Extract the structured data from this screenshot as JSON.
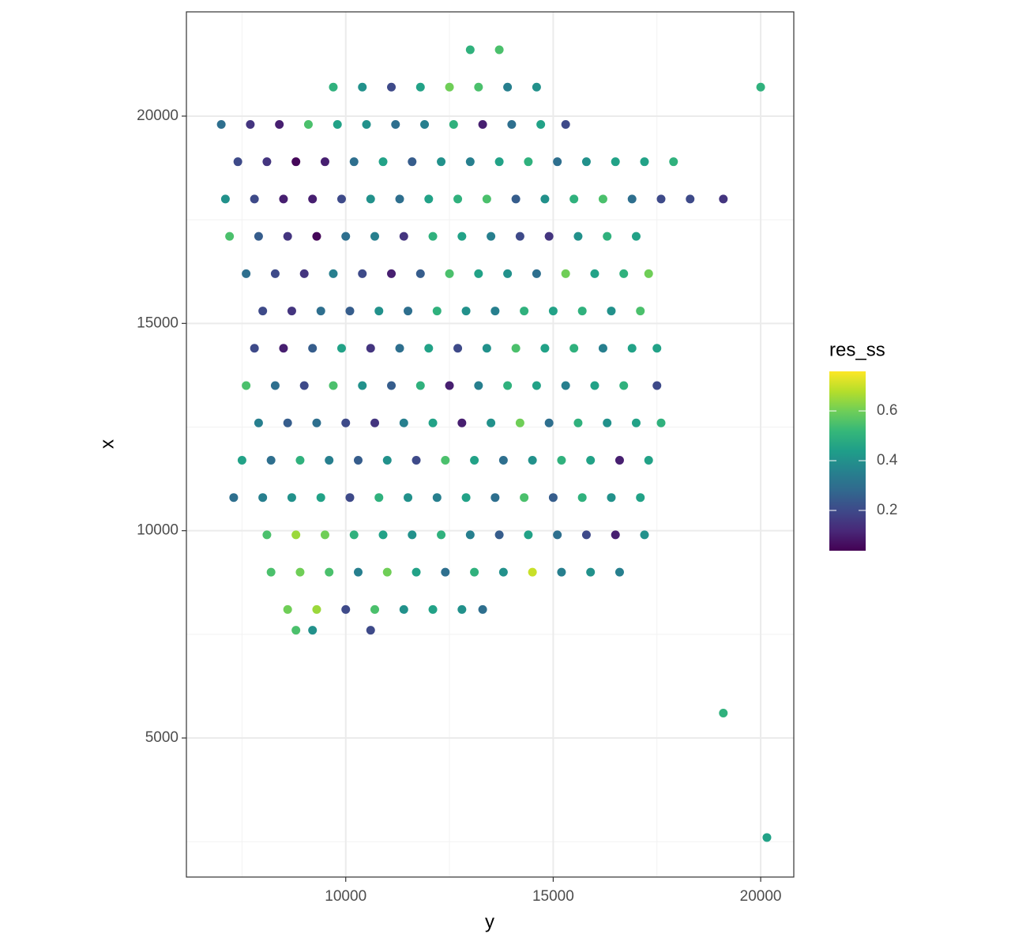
{
  "chart_data": {
    "type": "scatter",
    "x_label": "y",
    "y_label": "x",
    "legend_title": "res_ss",
    "xlim": [
      6160,
      20798
    ],
    "ylim": [
      1646,
      22515
    ],
    "xticks": [
      10000,
      15000,
      20000
    ],
    "yticks": [
      5000,
      10000,
      15000,
      20000
    ],
    "xminor": [
      7500,
      12500,
      17500
    ],
    "yminor": [
      2500,
      7500,
      12500,
      17500
    ],
    "grid": true,
    "colorlim": [
      0.038,
      0.759
    ],
    "colorticks": [
      0.2,
      0.4,
      0.6
    ],
    "colormap": "viridis",
    "x": [
      13000,
      13700,
      9700,
      10400,
      11100,
      11800,
      12500,
      13200,
      13900,
      14600,
      7000,
      7700,
      8400,
      9100,
      9800,
      10500,
      11200,
      11900,
      12600,
      13300,
      14000,
      14700,
      15300,
      7400,
      8100,
      8800,
      9500,
      10200,
      10900,
      11600,
      12300,
      13000,
      13700,
      14400,
      15100,
      15800,
      16500,
      17200,
      17900,
      7100,
      7800,
      8500,
      9200,
      9900,
      10600,
      11300,
      12000,
      12700,
      13400,
      14100,
      14800,
      15500,
      16200,
      16900,
      17600,
      18300,
      19100,
      7200,
      7900,
      8600,
      9300,
      10000,
      10700,
      11400,
      12100,
      12800,
      13500,
      14200,
      14900,
      15600,
      16300,
      17000,
      7600,
      8300,
      9000,
      9700,
      10400,
      11100,
      11800,
      12500,
      13200,
      13900,
      14600,
      15300,
      16000,
      16700,
      17300,
      8000,
      8700,
      9400,
      10100,
      10800,
      11500,
      12200,
      12900,
      13600,
      14300,
      15000,
      15700,
      16400,
      17100,
      7800,
      8500,
      9200,
      9900,
      10600,
      11300,
      12000,
      12700,
      13400,
      14100,
      14800,
      15500,
      16200,
      16900,
      17500,
      7600,
      8300,
      9000,
      9700,
      10400,
      11100,
      11800,
      12500,
      13200,
      13900,
      14600,
      15300,
      16000,
      16700,
      17500,
      7900,
      8600,
      9300,
      10000,
      10700,
      11400,
      12100,
      12800,
      13500,
      14200,
      14900,
      15600,
      16300,
      17000,
      17600,
      7500,
      8200,
      8900,
      9600,
      10300,
      11000,
      11700,
      12400,
      13100,
      13800,
      14500,
      15200,
      15900,
      16600,
      17300,
      7300,
      8000,
      8700,
      9400,
      10100,
      10800,
      11500,
      12200,
      12900,
      13600,
      14300,
      15000,
      15700,
      16400,
      17100,
      8100,
      8800,
      9500,
      10200,
      10900,
      11600,
      12300,
      13000,
      13700,
      14400,
      15100,
      15800,
      16500,
      17200,
      8200,
      8900,
      9600,
      10300,
      11000,
      11700,
      12400,
      13100,
      13800,
      14500,
      15200,
      15900,
      16600,
      8600,
      9300,
      10000,
      10700,
      11400,
      12100,
      12800,
      13300,
      8800,
      9200,
      10600,
      20000,
      19100,
      20150
    ],
    "y": [
      21600,
      21600,
      20700,
      20700,
      20700,
      20700,
      20700,
      20700,
      20700,
      20700,
      19800,
      19800,
      19800,
      19800,
      19800,
      19800,
      19800,
      19800,
      19800,
      19800,
      19800,
      19800,
      19800,
      18900,
      18900,
      18900,
      18900,
      18900,
      18900,
      18900,
      18900,
      18900,
      18900,
      18900,
      18900,
      18900,
      18900,
      18900,
      18900,
      18000,
      18000,
      18000,
      18000,
      18000,
      18000,
      18000,
      18000,
      18000,
      18000,
      18000,
      18000,
      18000,
      18000,
      18000,
      18000,
      18000,
      18000,
      17100,
      17100,
      17100,
      17100,
      17100,
      17100,
      17100,
      17100,
      17100,
      17100,
      17100,
      17100,
      17100,
      17100,
      17100,
      16200,
      16200,
      16200,
      16200,
      16200,
      16200,
      16200,
      16200,
      16200,
      16200,
      16200,
      16200,
      16200,
      16200,
      16200,
      15300,
      15300,
      15300,
      15300,
      15300,
      15300,
      15300,
      15300,
      15300,
      15300,
      15300,
      15300,
      15300,
      15300,
      14400,
      14400,
      14400,
      14400,
      14400,
      14400,
      14400,
      14400,
      14400,
      14400,
      14400,
      14400,
      14400,
      14400,
      14400,
      13500,
      13500,
      13500,
      13500,
      13500,
      13500,
      13500,
      13500,
      13500,
      13500,
      13500,
      13500,
      13500,
      13500,
      13500,
      12600,
      12600,
      12600,
      12600,
      12600,
      12600,
      12600,
      12600,
      12600,
      12600,
      12600,
      12600,
      12600,
      12600,
      12600,
      11700,
      11700,
      11700,
      11700,
      11700,
      11700,
      11700,
      11700,
      11700,
      11700,
      11700,
      11700,
      11700,
      11700,
      11700,
      10800,
      10800,
      10800,
      10800,
      10800,
      10800,
      10800,
      10800,
      10800,
      10800,
      10800,
      10800,
      10800,
      10800,
      10800,
      9900,
      9900,
      9900,
      9900,
      9900,
      9900,
      9900,
      9900,
      9900,
      9900,
      9900,
      9900,
      9900,
      9900,
      9000,
      9000,
      9000,
      9000,
      9000,
      9000,
      9000,
      9000,
      9000,
      9000,
      9000,
      9000,
      9000,
      8100,
      8100,
      8100,
      8100,
      8100,
      8100,
      8100,
      8100,
      7600,
      7600,
      7600,
      20700,
      5600,
      2600
    ],
    "values": [
      0.5,
      0.55,
      0.5,
      0.4,
      0.2,
      0.45,
      0.6,
      0.55,
      0.35,
      0.4,
      0.3,
      0.15,
      0.1,
      0.55,
      0.45,
      0.4,
      0.3,
      0.35,
      0.5,
      0.1,
      0.3,
      0.45,
      0.2,
      0.2,
      0.15,
      0.05,
      0.1,
      0.3,
      0.45,
      0.25,
      0.4,
      0.35,
      0.45,
      0.5,
      0.3,
      0.4,
      0.45,
      0.45,
      0.5,
      0.4,
      0.2,
      0.1,
      0.1,
      0.2,
      0.4,
      0.3,
      0.45,
      0.5,
      0.55,
      0.25,
      0.4,
      0.5,
      0.55,
      0.3,
      0.2,
      0.2,
      0.15,
      0.55,
      0.25,
      0.15,
      0.05,
      0.3,
      0.35,
      0.15,
      0.5,
      0.45,
      0.35,
      0.2,
      0.15,
      0.4,
      0.5,
      0.45,
      0.3,
      0.2,
      0.15,
      0.35,
      0.2,
      0.1,
      0.25,
      0.55,
      0.45,
      0.4,
      0.3,
      0.6,
      0.45,
      0.5,
      0.6,
      0.2,
      0.15,
      0.3,
      0.25,
      0.4,
      0.3,
      0.5,
      0.4,
      0.35,
      0.5,
      0.45,
      0.5,
      0.4,
      0.55,
      0.2,
      0.1,
      0.25,
      0.45,
      0.15,
      0.3,
      0.45,
      0.2,
      0.4,
      0.55,
      0.45,
      0.5,
      0.35,
      0.45,
      0.45,
      0.55,
      0.3,
      0.2,
      0.55,
      0.4,
      0.25,
      0.5,
      0.1,
      0.35,
      0.5,
      0.45,
      0.35,
      0.45,
      0.5,
      0.2,
      0.35,
      0.25,
      0.3,
      0.2,
      0.15,
      0.35,
      0.45,
      0.1,
      0.4,
      0.6,
      0.3,
      0.5,
      0.4,
      0.45,
      0.5,
      0.45,
      0.3,
      0.5,
      0.35,
      0.25,
      0.4,
      0.2,
      0.55,
      0.45,
      0.3,
      0.4,
      0.5,
      0.45,
      0.1,
      0.45,
      0.3,
      0.35,
      0.4,
      0.45,
      0.2,
      0.5,
      0.4,
      0.35,
      0.45,
      0.3,
      0.55,
      0.25,
      0.5,
      0.4,
      0.45,
      0.55,
      0.65,
      0.6,
      0.5,
      0.45,
      0.4,
      0.5,
      0.35,
      0.25,
      0.45,
      0.3,
      0.2,
      0.1,
      0.4,
      0.55,
      0.6,
      0.55,
      0.35,
      0.6,
      0.45,
      0.3,
      0.5,
      0.4,
      0.7,
      0.35,
      0.4,
      0.35,
      0.6,
      0.65,
      0.2,
      0.55,
      0.4,
      0.45,
      0.4,
      0.3,
      0.55,
      0.4,
      0.2,
      0.5,
      0.5,
      0.45
    ]
  }
}
